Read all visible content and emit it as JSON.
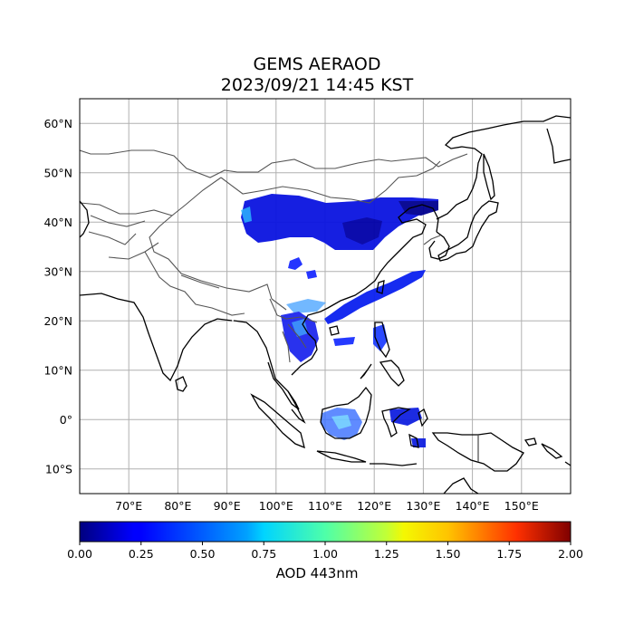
{
  "title": "GEMS AERAOD",
  "subtitle": "2023/09/21 14:45 KST",
  "map": {
    "lon_range": [
      60,
      160
    ],
    "lat_range": [
      -15,
      65
    ],
    "lat_ticks": [
      {
        "value": 60,
        "label": "60°N"
      },
      {
        "value": 50,
        "label": "50°N"
      },
      {
        "value": 40,
        "label": "40°N"
      },
      {
        "value": 30,
        "label": "30°N"
      },
      {
        "value": 20,
        "label": "20°N"
      },
      {
        "value": 10,
        "label": "10°N"
      },
      {
        "value": 0,
        "label": "0°"
      },
      {
        "value": -10,
        "label": "10°S"
      }
    ],
    "lon_ticks": [
      {
        "value": 70,
        "label": "70°E"
      },
      {
        "value": 80,
        "label": "80°E"
      },
      {
        "value": 90,
        "label": "90°E"
      },
      {
        "value": 100,
        "label": "100°E"
      },
      {
        "value": 110,
        "label": "110°E"
      },
      {
        "value": 120,
        "label": "120°E"
      },
      {
        "value": 130,
        "label": "130°E"
      },
      {
        "value": 140,
        "label": "140°E"
      },
      {
        "value": 150,
        "label": "150°E"
      }
    ],
    "grid": true,
    "colormap": "jet"
  },
  "colorbar": {
    "label": "AOD 443nm",
    "min": 0.0,
    "max": 2.0,
    "ticks": [
      "0.00",
      "0.25",
      "0.50",
      "0.75",
      "1.00",
      "1.25",
      "1.50",
      "1.75",
      "2.00"
    ]
  },
  "colors": {
    "coastline": "#000000",
    "borders": "#555555",
    "grid": "#b0b0b0"
  }
}
